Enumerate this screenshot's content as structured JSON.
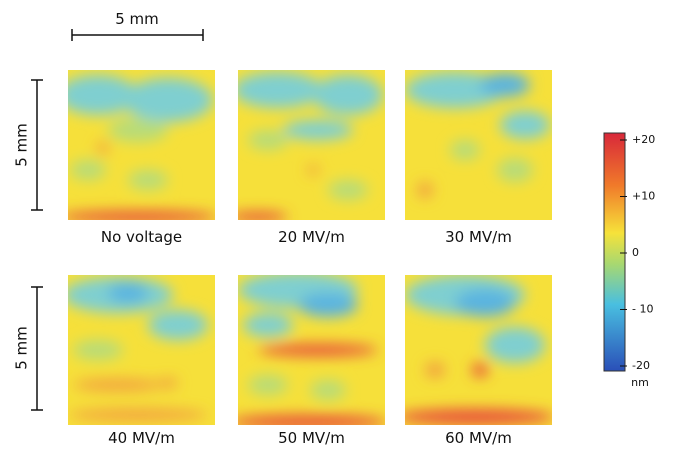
{
  "scale_bars": {
    "horizontal": "5 mm",
    "vertical": [
      "5 mm",
      "5 mm"
    ]
  },
  "panels": [
    {
      "label": "No voltage"
    },
    {
      "label": "20 MV/m"
    },
    {
      "label": "30 MV/m"
    },
    {
      "label": "40 MV/m"
    },
    {
      "label": "50 MV/m"
    },
    {
      "label": "60 MV/m"
    }
  ],
  "colorbar": {
    "lim": [
      -20,
      20
    ],
    "ticks": [
      {
        "value": 20,
        "label": "+20"
      },
      {
        "value": 10,
        "label": "+10"
      },
      0,
      {
        "value": -10,
        "label": "- 10"
      },
      {
        "value": -20,
        "label": "-20"
      }
    ],
    "unit": "nm"
  }
}
